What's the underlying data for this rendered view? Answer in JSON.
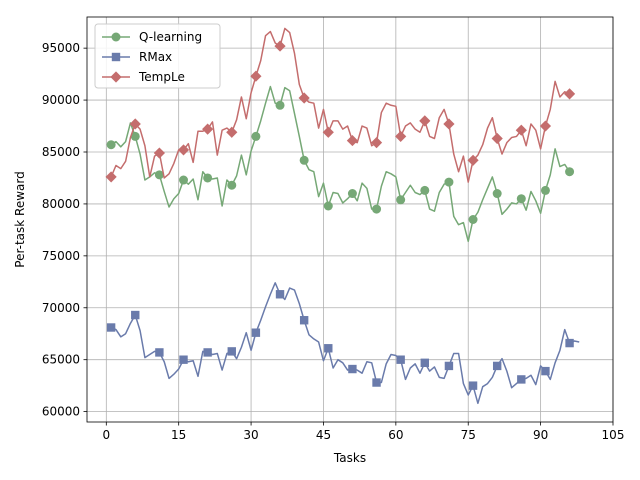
{
  "chart_data": {
    "type": "line",
    "xlabel": "Tasks",
    "ylabel": "Per-task Reward",
    "xlim": [
      -4,
      105
    ],
    "ylim": [
      59000,
      98000
    ],
    "xticks": [
      0,
      15,
      30,
      45,
      60,
      75,
      90,
      105
    ],
    "yticks": [
      60000,
      65000,
      70000,
      75000,
      80000,
      85000,
      90000,
      95000
    ],
    "xtick_labels": [
      "0",
      "15",
      "30",
      "45",
      "60",
      "75",
      "90",
      "105"
    ],
    "ytick_labels": [
      "60000",
      "65000",
      "70000",
      "75000",
      "80000",
      "85000",
      "90000",
      "95000"
    ],
    "grid": true,
    "legend_position": "top-left",
    "marker_every": 5,
    "marker_start": 1,
    "series": [
      {
        "name": "Q-learning",
        "color": "#76a876",
        "marker": "circle",
        "x_start": 1,
        "values": [
          85700,
          86000,
          85500,
          86000,
          87800,
          86500,
          84800,
          82300,
          82600,
          83000,
          82800,
          81200,
          79700,
          80500,
          81000,
          82300,
          81900,
          82400,
          80400,
          83100,
          82500,
          82400,
          82500,
          79800,
          82300,
          81800,
          82700,
          84700,
          82800,
          85100,
          86500,
          88000,
          89700,
          91300,
          89700,
          89500,
          91200,
          90900,
          88700,
          86500,
          84200,
          83300,
          83100,
          80700,
          82000,
          79800,
          81100,
          81000,
          80100,
          80500,
          81000,
          80300,
          82000,
          81500,
          79500,
          79500,
          81700,
          83100,
          82900,
          82600,
          80400,
          81100,
          81800,
          81100,
          80900,
          81300,
          79500,
          79300,
          81100,
          81900,
          82100,
          78800,
          78000,
          78200,
          76400,
          78500,
          79200,
          80400,
          81500,
          82600,
          81000,
          79000,
          79500,
          80100,
          80000,
          80500,
          79400,
          81200,
          80300,
          79100,
          81300,
          82800,
          85300,
          83600,
          83800,
          83100
        ]
      },
      {
        "name": "RMax",
        "color": "#6a7bab",
        "marker": "square",
        "x_start": 1,
        "values": [
          68100,
          67900,
          67200,
          67500,
          68500,
          69300,
          67800,
          65200,
          65500,
          65800,
          65700,
          64800,
          63200,
          63600,
          64100,
          65000,
          64800,
          64900,
          63400,
          65800,
          65700,
          65500,
          65600,
          64000,
          65600,
          65800,
          65100,
          66200,
          67600,
          65900,
          67600,
          68800,
          70100,
          71300,
          72400,
          71300,
          70800,
          71900,
          71700,
          70400,
          68800,
          67400,
          67000,
          66700,
          64900,
          66100,
          64200,
          65000,
          64700,
          64000,
          64100,
          64000,
          63700,
          64800,
          64700,
          62800,
          62800,
          64600,
          65500,
          65400,
          65000,
          63100,
          64200,
          64600,
          63700,
          64700,
          63900,
          64300,
          63300,
          63200,
          64400,
          65600,
          65600,
          62700,
          61600,
          62500,
          60800,
          62400,
          62700,
          63300,
          64400,
          65100,
          63900,
          62300,
          62700,
          63100,
          63200,
          63500,
          62600,
          64400,
          63900,
          63100,
          64700,
          65900,
          67900,
          66600,
          66800,
          66700
        ]
      },
      {
        "name": "TempLe",
        "color": "#c46d6d",
        "marker": "diamond",
        "x_start": 1,
        "values": [
          82600,
          83700,
          83400,
          84100,
          86400,
          87700,
          87200,
          85600,
          82600,
          84600,
          84900,
          82500,
          82900,
          83900,
          85200,
          85200,
          85800,
          84000,
          87000,
          87000,
          87200,
          87900,
          84700,
          87100,
          87300,
          86900,
          88100,
          90300,
          88200,
          90700,
          92300,
          93800,
          96200,
          96600,
          95500,
          95200,
          96900,
          96500,
          94500,
          91500,
          90200,
          89800,
          89700,
          87300,
          89100,
          86900,
          88000,
          88000,
          87200,
          87500,
          86100,
          85900,
          87500,
          87300,
          85600,
          85900,
          88800,
          89700,
          89500,
          89400,
          86500,
          87500,
          87800,
          87200,
          86900,
          88000,
          86500,
          86300,
          88300,
          89100,
          87700,
          84800,
          83100,
          84600,
          82100,
          84200,
          84700,
          85700,
          87300,
          88300,
          86300,
          84800,
          85900,
          86400,
          86500,
          87100,
          85600,
          87700,
          87100,
          85300,
          87500,
          89100,
          91800,
          90300,
          90800,
          90600
        ]
      }
    ]
  }
}
